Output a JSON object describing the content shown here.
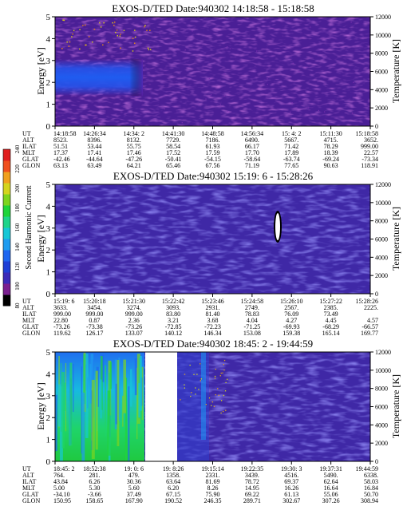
{
  "colorbar": {
    "label": "Second Harmonic Current",
    "ticks": [
      "80",
      "100",
      "120",
      "140",
      "160",
      "180",
      "200",
      "220",
      "240"
    ],
    "colors": [
      "#000000",
      "#7a1f8f",
      "#3b2ab8",
      "#1f3fd6",
      "#1f66f0",
      "#1f9cf0",
      "#17c7d6",
      "#1fd48a",
      "#1fd43a",
      "#7ed41f",
      "#d4d41f",
      "#f0a01f",
      "#f0501f",
      "#e01f1f"
    ]
  },
  "chart_data": [
    {
      "type": "heatmap",
      "title": "EXOS-D/TED   Date:940302  14:18:58 - 15:18:58",
      "ylabel": "Energy [eV]",
      "ylabel_right": "Temperature [K]",
      "yticks": [
        "0",
        "1",
        "2",
        "3",
        "4",
        "5"
      ],
      "yticks_right": [
        "0",
        "2000",
        "4000",
        "6000",
        "8000",
        "10000",
        "12000"
      ],
      "ylim": [
        0,
        5
      ],
      "ylim_right": [
        0,
        12000
      ],
      "row_labels": [
        "UT",
        "ALT",
        "ILAT",
        "MLT",
        "GLAT",
        "GLON"
      ],
      "columns": [
        [
          "14:18:58",
          "8523.",
          "51.51",
          "17.37",
          "-42.46",
          "63.13"
        ],
        [
          "14:26:34",
          "8396.",
          "53.44",
          "17.41",
          "-44.64",
          "63.49"
        ],
        [
          "14:34: 2",
          "8132.",
          "55.75",
          "17.46",
          "-47.26",
          "64.21"
        ],
        [
          "14:41:30",
          "7729.",
          "58.54",
          "17.52",
          "-50.41",
          "65.46"
        ],
        [
          "14:48:58",
          "7186.",
          "61.93",
          "17.59",
          "-54.15",
          "67.56"
        ],
        [
          "14:56:34",
          "6490.",
          "66.17",
          "17.70",
          "-58.64",
          "71.19"
        ],
        [
          "15: 4: 2",
          "5667.",
          "71.42",
          "17.89",
          "-63.74",
          "77.65"
        ],
        [
          "15:11:30",
          "4715.",
          "78.29",
          "18.39",
          "-69.24",
          "90.63"
        ],
        [
          "15:18:58",
          "3652.",
          "999.00",
          "22.57",
          "-73.34",
          "118.91"
        ]
      ]
    },
    {
      "type": "heatmap",
      "title": "EXOS-D/TED   Date:940302  15:19: 6 - 15:28:26",
      "ylabel": "Energy [eV]",
      "ylabel_right": "Temperature [K]",
      "yticks": [
        "0",
        "1",
        "2",
        "3",
        "4",
        "5"
      ],
      "yticks_right": [
        "0",
        "2000",
        "4000",
        "6000",
        "8000",
        "10000",
        "12000"
      ],
      "ylim": [
        0,
        5
      ],
      "ylim_right": [
        0,
        12000
      ],
      "row_labels": [
        "UT",
        "ALT",
        "ILAT",
        "MLT",
        "GLAT",
        "GLON"
      ],
      "columns": [
        [
          "15:19: 6",
          "3633.",
          "999.00",
          "22.80",
          "-73.26",
          "119.62"
        ],
        [
          "15:20:18",
          "3454.",
          "999.00",
          "0.87",
          "-73.38",
          "126.17"
        ],
        [
          "15:21:30",
          "3274.",
          "999.00",
          "2.36",
          "-73.26",
          "133.07"
        ],
        [
          "15:22:42",
          "3093.",
          "83.80",
          "3.21",
          "-72.85",
          "140.12"
        ],
        [
          "15:23:46",
          "2931.",
          "81.40",
          "3.68",
          "-72.23",
          "146.34"
        ],
        [
          "15:24:58",
          "2749.",
          "78.83",
          "4.04",
          "-71.25",
          "153.08"
        ],
        [
          "15:26:10",
          "2567.",
          "76.09",
          "4.27",
          "-69.93",
          "159.38"
        ],
        [
          "15:27:22",
          "2385.",
          "73.49",
          "4.45",
          "-68.29",
          "165.14"
        ],
        [
          "15:28:26",
          "2225.",
          "",
          "4.57",
          "-66.57",
          "169.77"
        ]
      ]
    },
    {
      "type": "heatmap",
      "title": "EXOS-D/TED   Date:940302  18:45: 2 - 19:44:59",
      "ylabel": "Energy [eV]",
      "ylabel_right": "Temperature [K]",
      "yticks": [
        "0",
        "1",
        "2",
        "3",
        "4",
        "5"
      ],
      "yticks_right": [
        "0",
        "2000",
        "4000",
        "6000",
        "8000",
        "10000",
        "12000"
      ],
      "ylim": [
        0,
        5
      ],
      "ylim_right": [
        0,
        12000
      ],
      "row_labels": [
        "UT",
        "ALT",
        "ILAT",
        "MLT",
        "GLAT",
        "GLON"
      ],
      "columns": [
        [
          "18:45: 2",
          "764.",
          "43.84",
          "5.00",
          "-34.10",
          "150.95"
        ],
        [
          "18:52:38",
          "281.",
          "6.26",
          "5.30",
          "-3.66",
          "158.65"
        ],
        [
          "19: 0: 6",
          "479.",
          "30.36",
          "5.60",
          "37.49",
          "167.90"
        ],
        [
          "19: 8:26",
          "1358.",
          "63.64",
          "6.20",
          "67.15",
          "190.52"
        ],
        [
          "19:15:14",
          "2331.",
          "81.69",
          "8.26",
          "75.90",
          "246.35"
        ],
        [
          "19:22:35",
          "3439.",
          "78.72",
          "14.95",
          "69.22",
          "289.71"
        ],
        [
          "19:30: 3",
          "4516.",
          "69.37",
          "16.26",
          "61.13",
          "302.67"
        ],
        [
          "19:37:31",
          "5490.",
          "62.64",
          "16.64",
          "55.06",
          "307.26"
        ],
        [
          "19:44:59",
          "6338.",
          "58.03",
          "16.84",
          "50.70",
          "308.94"
        ]
      ]
    }
  ]
}
